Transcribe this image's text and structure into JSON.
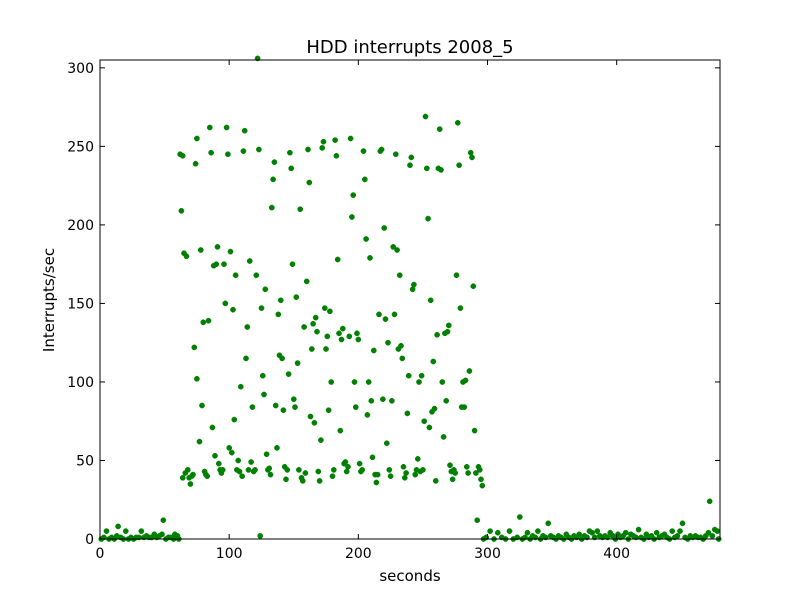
{
  "chart_data": {
    "type": "scatter",
    "title": "HDD interrupts 2008_5",
    "xlabel": "seconds",
    "ylabel": "Interrupts/sec",
    "xlim": [
      0,
      480
    ],
    "ylim": [
      0,
      305
    ],
    "xticks": [
      0,
      100,
      200,
      300,
      400
    ],
    "yticks": [
      0,
      50,
      100,
      150,
      200,
      250,
      300
    ],
    "grid": false,
    "marker_color": "#008000",
    "points": [
      [
        1,
        0
      ],
      [
        3,
        1
      ],
      [
        5,
        5
      ],
      [
        7,
        0
      ],
      [
        9,
        1
      ],
      [
        11,
        0
      ],
      [
        13,
        2
      ],
      [
        14,
        8
      ],
      [
        16,
        1
      ],
      [
        18,
        0
      ],
      [
        20,
        5
      ],
      [
        22,
        0
      ],
      [
        24,
        1
      ],
      [
        26,
        0
      ],
      [
        28,
        1
      ],
      [
        30,
        1
      ],
      [
        32,
        5
      ],
      [
        34,
        1
      ],
      [
        36,
        2
      ],
      [
        38,
        1
      ],
      [
        40,
        1
      ],
      [
        42,
        3
      ],
      [
        44,
        1
      ],
      [
        46,
        2
      ],
      [
        48,
        3
      ],
      [
        49,
        12
      ],
      [
        51,
        0
      ],
      [
        53,
        1
      ],
      [
        55,
        1
      ],
      [
        57,
        0
      ],
      [
        58,
        3
      ],
      [
        59,
        1
      ],
      [
        60,
        2
      ],
      [
        61,
        0
      ],
      [
        62,
        245
      ],
      [
        63,
        209
      ],
      [
        64,
        244
      ],
      [
        64,
        39
      ],
      [
        65,
        182
      ],
      [
        66,
        42
      ],
      [
        67,
        180
      ],
      [
        68,
        44
      ],
      [
        69,
        39
      ],
      [
        70,
        35
      ],
      [
        71,
        40
      ],
      [
        72,
        41
      ],
      [
        73,
        122
      ],
      [
        74,
        239
      ],
      [
        75,
        255
      ],
      [
        75,
        102
      ],
      [
        77,
        62
      ],
      [
        78,
        184
      ],
      [
        79,
        85
      ],
      [
        80,
        138
      ],
      [
        81,
        43
      ],
      [
        82,
        41
      ],
      [
        83,
        40
      ],
      [
        84,
        139
      ],
      [
        85,
        262
      ],
      [
        86,
        246
      ],
      [
        87,
        71
      ],
      [
        88,
        174
      ],
      [
        89,
        53
      ],
      [
        90,
        175
      ],
      [
        91,
        186
      ],
      [
        92,
        48
      ],
      [
        93,
        44
      ],
      [
        94,
        42
      ],
      [
        95,
        44
      ],
      [
        96,
        175
      ],
      [
        97,
        150
      ],
      [
        98,
        262
      ],
      [
        99,
        245
      ],
      [
        100,
        58
      ],
      [
        101,
        183
      ],
      [
        102,
        55
      ],
      [
        103,
        146
      ],
      [
        104,
        76
      ],
      [
        105,
        168
      ],
      [
        106,
        44
      ],
      [
        107,
        50
      ],
      [
        108,
        43
      ],
      [
        109,
        97
      ],
      [
        110,
        40
      ],
      [
        111,
        247
      ],
      [
        112,
        260
      ],
      [
        113,
        115
      ],
      [
        114,
        135
      ],
      [
        115,
        44
      ],
      [
        116,
        177
      ],
      [
        117,
        49
      ],
      [
        118,
        84
      ],
      [
        119,
        43
      ],
      [
        120,
        44
      ],
      [
        121,
        168
      ],
      [
        122,
        306
      ],
      [
        123,
        248
      ],
      [
        124,
        2
      ],
      [
        125,
        147
      ],
      [
        126,
        104
      ],
      [
        127,
        92
      ],
      [
        128,
        159
      ],
      [
        129,
        54
      ],
      [
        130,
        44
      ],
      [
        131,
        45
      ],
      [
        132,
        41
      ],
      [
        133,
        211
      ],
      [
        134,
        229
      ],
      [
        135,
        240
      ],
      [
        136,
        85
      ],
      [
        137,
        58
      ],
      [
        138,
        143
      ],
      [
        139,
        117
      ],
      [
        140,
        152
      ],
      [
        141,
        115
      ],
      [
        142,
        82
      ],
      [
        143,
        46
      ],
      [
        144,
        38
      ],
      [
        145,
        44
      ],
      [
        146,
        105
      ],
      [
        147,
        246
      ],
      [
        148,
        236
      ],
      [
        149,
        175
      ],
      [
        150,
        89
      ],
      [
        151,
        84
      ],
      [
        152,
        154
      ],
      [
        153,
        112
      ],
      [
        154,
        44
      ],
      [
        155,
        210
      ],
      [
        156,
        39
      ],
      [
        157,
        37
      ],
      [
        158,
        135
      ],
      [
        159,
        42
      ],
      [
        160,
        164
      ],
      [
        161,
        248
      ],
      [
        162,
        227
      ],
      [
        163,
        78
      ],
      [
        164,
        121
      ],
      [
        165,
        137
      ],
      [
        166,
        74
      ],
      [
        167,
        141
      ],
      [
        168,
        132
      ],
      [
        169,
        43
      ],
      [
        170,
        37
      ],
      [
        171,
        63
      ],
      [
        172,
        249
      ],
      [
        173,
        253
      ],
      [
        174,
        147
      ],
      [
        175,
        121
      ],
      [
        176,
        129
      ],
      [
        177,
        82
      ],
      [
        178,
        145
      ],
      [
        179,
        100
      ],
      [
        180,
        40
      ],
      [
        181,
        44
      ],
      [
        182,
        254
      ],
      [
        183,
        244
      ],
      [
        184,
        178
      ],
      [
        185,
        131
      ],
      [
        186,
        69
      ],
      [
        187,
        127
      ],
      [
        188,
        134
      ],
      [
        189,
        48
      ],
      [
        190,
        49
      ],
      [
        191,
        43
      ],
      [
        192,
        46
      ],
      [
        193,
        129
      ],
      [
        194,
        255
      ],
      [
        195,
        205
      ],
      [
        196,
        219
      ],
      [
        197,
        100
      ],
      [
        198,
        84
      ],
      [
        199,
        131
      ],
      [
        200,
        127
      ],
      [
        201,
        48
      ],
      [
        202,
        43
      ],
      [
        203,
        44
      ],
      [
        204,
        247
      ],
      [
        205,
        229
      ],
      [
        206,
        191
      ],
      [
        207,
        79
      ],
      [
        208,
        100
      ],
      [
        209,
        179
      ],
      [
        210,
        88
      ],
      [
        211,
        52
      ],
      [
        212,
        120
      ],
      [
        213,
        41
      ],
      [
        214,
        36
      ],
      [
        215,
        41
      ],
      [
        216,
        143
      ],
      [
        217,
        247
      ],
      [
        218,
        248
      ],
      [
        219,
        89
      ],
      [
        220,
        198
      ],
      [
        221,
        140
      ],
      [
        222,
        61
      ],
      [
        223,
        125
      ],
      [
        224,
        44
      ],
      [
        225,
        40
      ],
      [
        226,
        88
      ],
      [
        227,
        186
      ],
      [
        228,
        143
      ],
      [
        229,
        245
      ],
      [
        230,
        184
      ],
      [
        231,
        121
      ],
      [
        232,
        168
      ],
      [
        233,
        123
      ],
      [
        234,
        115
      ],
      [
        235,
        46
      ],
      [
        236,
        39
      ],
      [
        237,
        42
      ],
      [
        238,
        80
      ],
      [
        239,
        104
      ],
      [
        240,
        238
      ],
      [
        241,
        243
      ],
      [
        242,
        159
      ],
      [
        243,
        162
      ],
      [
        244,
        41
      ],
      [
        245,
        44
      ],
      [
        246,
        51
      ],
      [
        247,
        100
      ],
      [
        248,
        43
      ],
      [
        249,
        104
      ],
      [
        250,
        44
      ],
      [
        251,
        75
      ],
      [
        252,
        269
      ],
      [
        253,
        236
      ],
      [
        254,
        204
      ],
      [
        255,
        71
      ],
      [
        256,
        152
      ],
      [
        257,
        81
      ],
      [
        258,
        113
      ],
      [
        259,
        83
      ],
      [
        260,
        37
      ],
      [
        261,
        130
      ],
      [
        262,
        236
      ],
      [
        263,
        261
      ],
      [
        264,
        235
      ],
      [
        265,
        100
      ],
      [
        266,
        65
      ],
      [
        267,
        131
      ],
      [
        268,
        88
      ],
      [
        269,
        132
      ],
      [
        270,
        136
      ],
      [
        271,
        47
      ],
      [
        272,
        43
      ],
      [
        273,
        38
      ],
      [
        274,
        44
      ],
      [
        275,
        42
      ],
      [
        276,
        168
      ],
      [
        277,
        265
      ],
      [
        278,
        238
      ],
      [
        279,
        147
      ],
      [
        280,
        84
      ],
      [
        281,
        100
      ],
      [
        282,
        84
      ],
      [
        283,
        101
      ],
      [
        284,
        46
      ],
      [
        285,
        42
      ],
      [
        286,
        107
      ],
      [
        287,
        246
      ],
      [
        288,
        243
      ],
      [
        289,
        161
      ],
      [
        290,
        69
      ],
      [
        291,
        42
      ],
      [
        292,
        12
      ],
      [
        293,
        46
      ],
      [
        294,
        44
      ],
      [
        295,
        38
      ],
      [
        296,
        34
      ],
      [
        297,
        0
      ],
      [
        299,
        1
      ],
      [
        302,
        5
      ],
      [
        305,
        0
      ],
      [
        308,
        4
      ],
      [
        311,
        1
      ],
      [
        314,
        0
      ],
      [
        317,
        5
      ],
      [
        320,
        0
      ],
      [
        323,
        1
      ],
      [
        325,
        14
      ],
      [
        327,
        0
      ],
      [
        329,
        1
      ],
      [
        331,
        4
      ],
      [
        333,
        0
      ],
      [
        335,
        2
      ],
      [
        337,
        1
      ],
      [
        339,
        5
      ],
      [
        341,
        0
      ],
      [
        343,
        2
      ],
      [
        345,
        1
      ],
      [
        347,
        10
      ],
      [
        349,
        2
      ],
      [
        351,
        1
      ],
      [
        353,
        0
      ],
      [
        355,
        2
      ],
      [
        357,
        1
      ],
      [
        359,
        0
      ],
      [
        361,
        3
      ],
      [
        363,
        1
      ],
      [
        365,
        0
      ],
      [
        367,
        2
      ],
      [
        369,
        1
      ],
      [
        371,
        3
      ],
      [
        373,
        0
      ],
      [
        375,
        2
      ],
      [
        377,
        1
      ],
      [
        379,
        5
      ],
      [
        381,
        4
      ],
      [
        383,
        1
      ],
      [
        385,
        5
      ],
      [
        387,
        2
      ],
      [
        389,
        1
      ],
      [
        391,
        2
      ],
      [
        393,
        1
      ],
      [
        395,
        4
      ],
      [
        397,
        2
      ],
      [
        399,
        0
      ],
      [
        401,
        3
      ],
      [
        403,
        1
      ],
      [
        405,
        2
      ],
      [
        407,
        4
      ],
      [
        409,
        0
      ],
      [
        411,
        3
      ],
      [
        413,
        2
      ],
      [
        415,
        1
      ],
      [
        417,
        6
      ],
      [
        419,
        1
      ],
      [
        421,
        0
      ],
      [
        423,
        3
      ],
      [
        425,
        1
      ],
      [
        427,
        2
      ],
      [
        429,
        0
      ],
      [
        431,
        4
      ],
      [
        433,
        1
      ],
      [
        435,
        2
      ],
      [
        437,
        3
      ],
      [
        439,
        1
      ],
      [
        441,
        0
      ],
      [
        443,
        5
      ],
      [
        445,
        1
      ],
      [
        447,
        2
      ],
      [
        449,
        5
      ],
      [
        451,
        10
      ],
      [
        453,
        1
      ],
      [
        455,
        0
      ],
      [
        457,
        2
      ],
      [
        459,
        1
      ],
      [
        461,
        2
      ],
      [
        463,
        1
      ],
      [
        465,
        1
      ],
      [
        467,
        0
      ],
      [
        469,
        2
      ],
      [
        471,
        4
      ],
      [
        472,
        24
      ],
      [
        474,
        2
      ],
      [
        476,
        6
      ],
      [
        478,
        5
      ],
      [
        479,
        0
      ]
    ]
  }
}
